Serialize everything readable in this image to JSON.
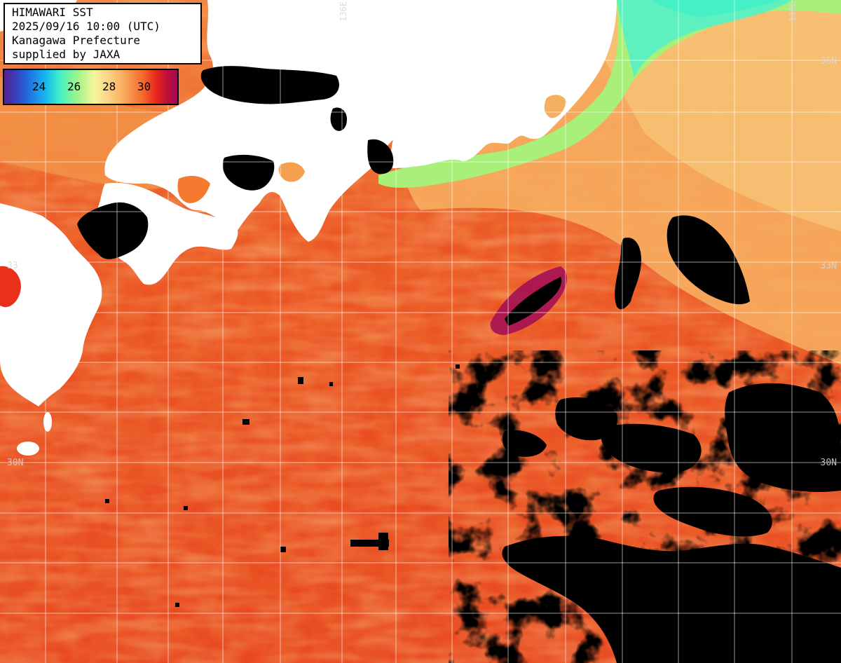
{
  "header": {
    "line1": "HIMAWARI SST",
    "line2": "2025/09/16 10:00 (UTC)",
    "line3": "Kanagawa Prefecture",
    "line4": "supplied by JAXA"
  },
  "legend": {
    "ticks": [
      "24",
      "26",
      "28",
      "30"
    ],
    "colors": [
      "#5a1f8e",
      "#1f6fe0",
      "#3ff0c8",
      "#f5f59a",
      "#f56a2a",
      "#e6241a",
      "#a00a56"
    ]
  },
  "grid": {
    "lat_labels": [
      "36N",
      "33N",
      "30N"
    ],
    "lat_labels_left": [
      "33",
      "30N"
    ],
    "lon_labels": [
      "136E",
      "140E"
    ]
  },
  "map_colors": {
    "land": "#ffffff",
    "cloud": "#000000",
    "warm_sea": "#e8401c",
    "mid_sea": "#f7a85a",
    "cool_sea": "#a8f07a",
    "cold_sea": "#5ff0c0"
  }
}
